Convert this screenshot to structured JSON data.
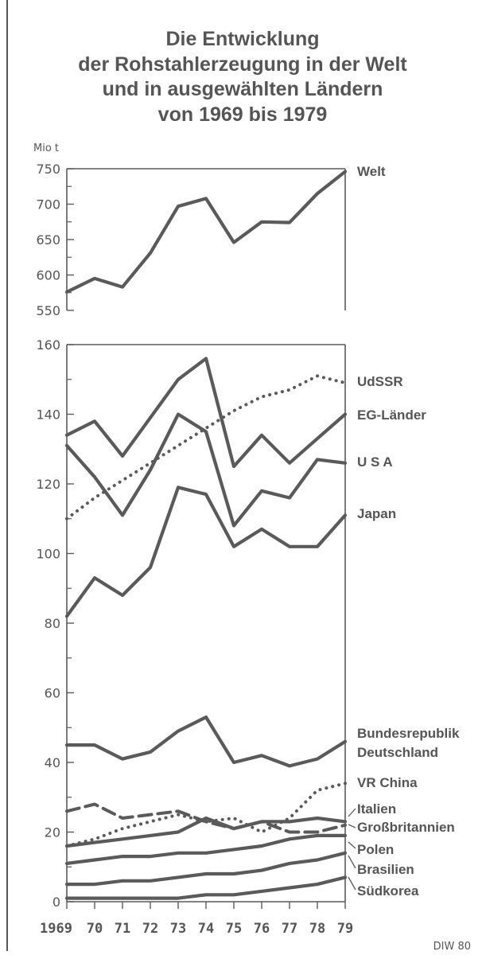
{
  "title_lines": [
    "Die Entwicklung",
    "der Rohstahlerzeugung in der Welt",
    "und in ausgewählten Ländern",
    "von 1969 bis 1979"
  ],
  "credit": "DIW 80",
  "chart_data": [
    {
      "type": "line",
      "ylabel": "Mio t",
      "ylim": [
        550,
        750
      ],
      "yticks": [
        "750",
        "700",
        "650",
        "600",
        "550"
      ],
      "x": [
        1969,
        1970,
        1971,
        1972,
        1973,
        1974,
        1975,
        1976,
        1977,
        1978,
        1979
      ],
      "series": [
        {
          "name": "Welt",
          "style": "solid",
          "values": [
            576,
            595,
            583,
            631,
            697,
            708,
            646,
            675,
            674,
            715,
            746
          ]
        }
      ]
    },
    {
      "type": "line",
      "ylim": [
        0,
        160
      ],
      "yticks": [
        "160",
        "140",
        "120",
        "100",
        "80",
        "60",
        "40",
        "20",
        "0"
      ],
      "x": [
        1969,
        1970,
        1971,
        1972,
        1973,
        1974,
        1975,
        1976,
        1977,
        1978,
        1979
      ],
      "xtick_labels": [
        "1969",
        "70",
        "71",
        "72",
        "73",
        "74",
        "75",
        "76",
        "77",
        "78",
        "79"
      ],
      "series": [
        {
          "name": "UdSSR",
          "style": "dotted",
          "values": [
            110,
            116,
            121,
            126,
            131,
            136,
            141,
            145,
            147,
            151,
            149
          ]
        },
        {
          "name": "EG-Länder",
          "style": "solid",
          "values": [
            134,
            138,
            128,
            139,
            150,
            156,
            125,
            134,
            126,
            133,
            140
          ]
        },
        {
          "name": "USA",
          "label": "U S A",
          "style": "solid",
          "values": [
            131,
            122,
            111,
            124,
            140,
            135,
            108,
            118,
            116,
            127,
            126
          ]
        },
        {
          "name": "Japan",
          "style": "solid",
          "values": [
            82,
            93,
            88,
            96,
            119,
            117,
            102,
            107,
            102,
            102,
            111
          ]
        },
        {
          "name": "Bundesrepublik Deutschland",
          "style": "solid",
          "values": [
            45,
            45,
            41,
            43,
            49,
            53,
            40,
            42,
            39,
            41,
            46
          ]
        },
        {
          "name": "VR China",
          "style": "dotted",
          "values": [
            16,
            18,
            21,
            23,
            25,
            23,
            24,
            20,
            24,
            32,
            34
          ]
        },
        {
          "name": "Italien",
          "style": "dashed",
          "values": [
            26,
            28,
            24,
            25,
            26,
            23,
            21,
            23,
            20,
            20,
            22
          ]
        },
        {
          "name": "Großbritannien",
          "style": "solid",
          "values": [
            16,
            17,
            18,
            19,
            20,
            24,
            21,
            23,
            23,
            24,
            23
          ]
        },
        {
          "name": "Polen",
          "style": "solid",
          "values": [
            11,
            12,
            13,
            13,
            14,
            14,
            15,
            16,
            18,
            19,
            19
          ]
        },
        {
          "name": "Brasilien",
          "style": "solid",
          "values": [
            5,
            5,
            6,
            6,
            7,
            8,
            8,
            9,
            11,
            12,
            14
          ]
        },
        {
          "name": "Südkorea",
          "style": "solid",
          "values": [
            1,
            1,
            1,
            1,
            1,
            2,
            2,
            3,
            4,
            5,
            7
          ]
        }
      ]
    }
  ]
}
